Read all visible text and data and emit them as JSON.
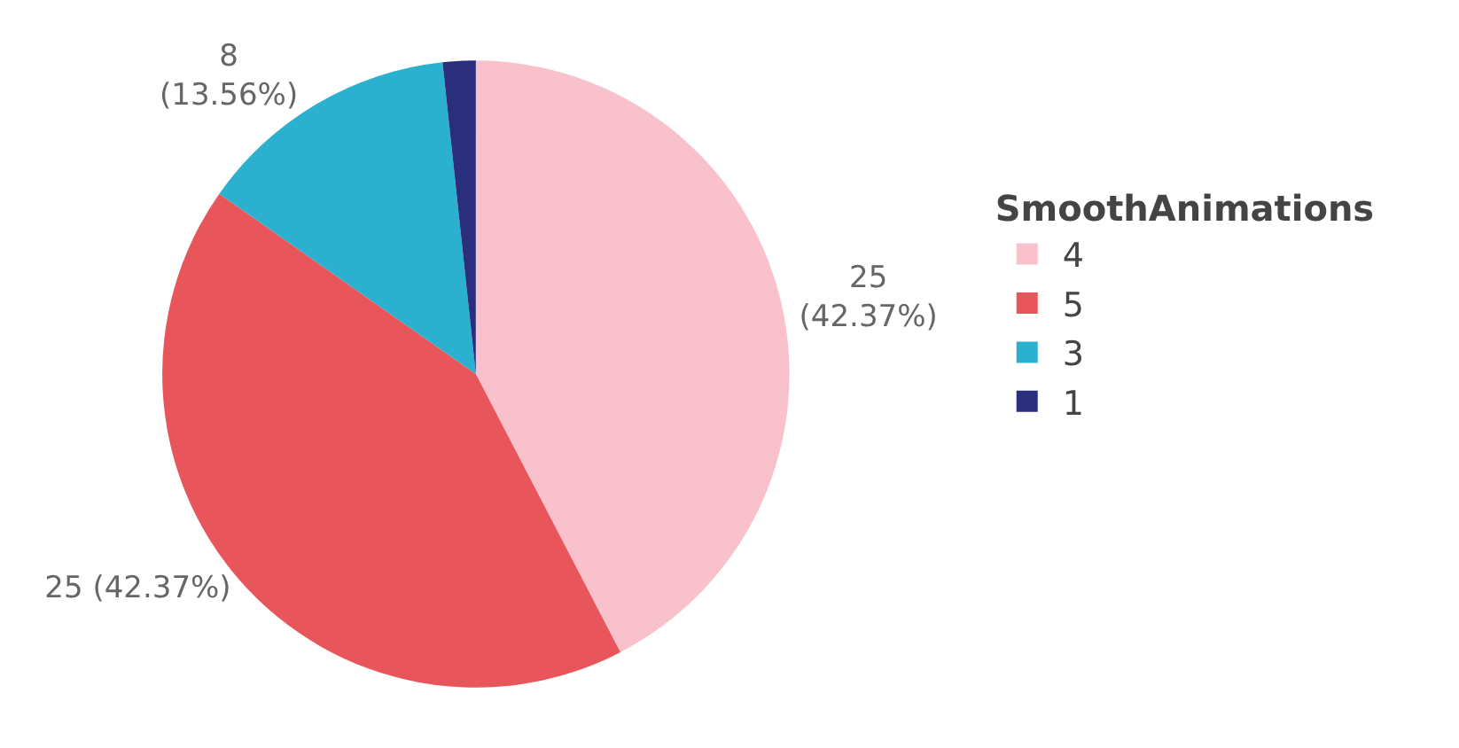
{
  "chart_data": {
    "type": "pie",
    "legend_title": "SmoothAnimations",
    "legend": "right",
    "categories": [
      "4",
      "5",
      "3",
      "1"
    ],
    "values": [
      25,
      25,
      8,
      1
    ],
    "colors": [
      "#f9c1cb",
      "#e8555a",
      "#2bb0cf",
      "#2b2d7d"
    ],
    "value_labels": [
      "25\n(42.37%)",
      "25 (42.37%)",
      "8\n(13.56%)",
      null
    ]
  }
}
